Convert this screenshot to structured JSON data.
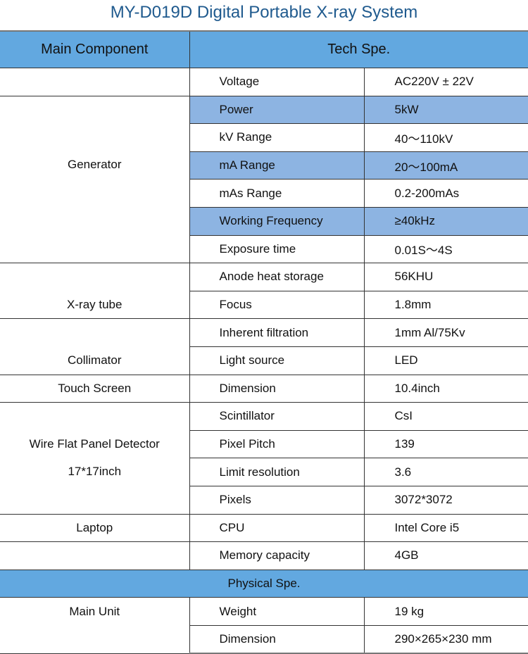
{
  "title": "MY-D019D Digital Portable X-ray System",
  "header": {
    "col1": "Main Component",
    "col2": "Tech Spe."
  },
  "groups": {
    "generator": "Generator",
    "xray_tube": "X-ray tube",
    "collimator": "Collimator",
    "touch_screen": "Touch Screen",
    "detector_line1": "Wire Flat Panel Detector",
    "detector_line2": "17*17inch",
    "laptop": "Laptop",
    "main_unit": "Main Unit"
  },
  "rows": [
    {
      "param": "Voltage",
      "value": "AC220V ± 22V"
    },
    {
      "param": "Power",
      "value": "5kW",
      "highlight": true
    },
    {
      "param": "kV Range",
      "value": "40～110kV"
    },
    {
      "param": "mA Range",
      "value": "20～100mA",
      "highlight": true
    },
    {
      "param": "mAs Range",
      "value": "0.2-200mAs"
    },
    {
      "param": "Working Frequency",
      "value": "≥40kHz",
      "highlight": true
    },
    {
      "param": "Exposure time",
      "value": "0.01S～4S"
    },
    {
      "param": "Anode heat storage",
      "value": "56KHU"
    },
    {
      "param": "Focus",
      "value": "1.8mm"
    },
    {
      "param": "Inherent filtration",
      "value": "1mm Al/75Kv"
    },
    {
      "param": "Light source",
      "value": "LED"
    },
    {
      "param": "Dimension",
      "value": "10.4inch"
    },
    {
      "param": "Scintillator",
      "value": "CsI"
    },
    {
      "param": "Pixel Pitch",
      "value": "139"
    },
    {
      "param": "Limit resolution",
      "value": "3.6"
    },
    {
      "param": "Pixels",
      "value": "3072*3072"
    },
    {
      "param": "CPU",
      "value": "Intel Core i5"
    },
    {
      "param": "Memory capacity",
      "value": "4GB"
    },
    {
      "param": "Weight",
      "value": "19 kg"
    },
    {
      "param": "Dimension",
      "value": "290×265×230 mm"
    }
  ],
  "section": "Physical Spe.",
  "colors": {
    "header": "#62a8e0",
    "highlight": "#8db4e2",
    "title": "#1f5a8e"
  }
}
